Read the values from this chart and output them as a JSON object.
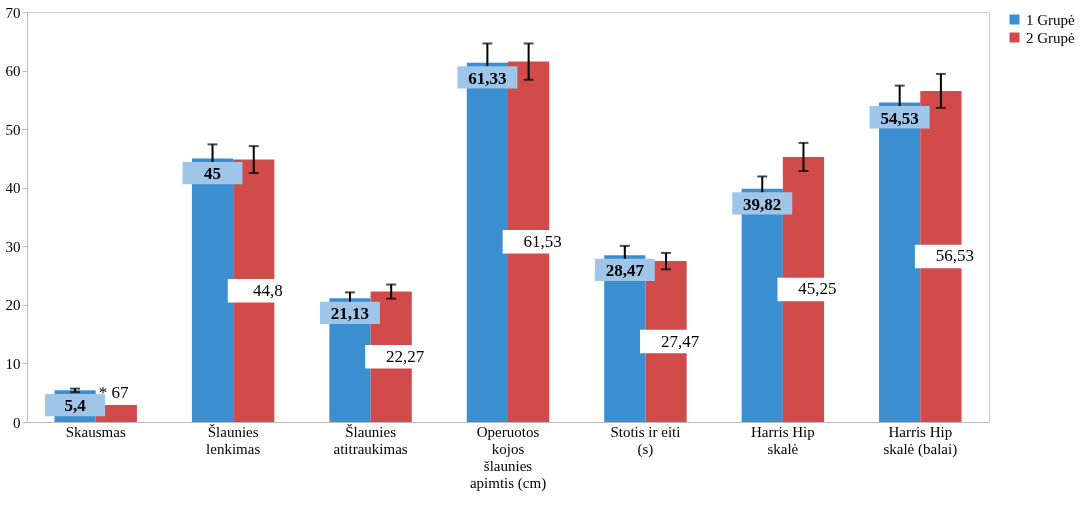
{
  "chart_data": {
    "type": "bar",
    "categories": [
      "Skausmas",
      "Šlaunies\nlenkimas",
      "Šlaunies\natitraukimas",
      "Operuotos\nkojos\nšlaunies\napimtis (cm)",
      "Stotis ir eiti\n(s)",
      "Harris Hip\nskalė",
      "Harris Hip\nskalė (balai)"
    ],
    "series": [
      {
        "name": "1 Grupė",
        "color": "#3b8fd0",
        "values": [
          5.4,
          45,
          21.13,
          61.33,
          28.47,
          39.82,
          54.53
        ],
        "errors": [
          0.3,
          2.4,
          1.0,
          3.3,
          1.6,
          2.1,
          2.9
        ],
        "value_labels": [
          "5,4",
          "45",
          "21,13",
          "61,33",
          "28,47",
          "39,82",
          "54,53"
        ]
      },
      {
        "name": "2 Grupė",
        "color": "#d24b4b",
        "values": [
          2.9,
          44.8,
          22.27,
          61.53,
          27.47,
          45.25,
          56.53
        ],
        "errors": [
          null,
          2.3,
          1.2,
          3.1,
          1.4,
          2.4,
          2.9
        ],
        "value_labels": [
          null,
          "44,8",
          "22,27",
          "61,53",
          "27,47",
          "45,25",
          "56,53"
        ]
      }
    ],
    "annotations": [
      {
        "text": "* 67",
        "x": "Skausmas",
        "y": 2.9
      }
    ],
    "ylim": [
      0,
      70
    ],
    "yticks": [
      0,
      10,
      20,
      30,
      40,
      50,
      60,
      70
    ],
    "grid": false,
    "legend": "right"
  }
}
